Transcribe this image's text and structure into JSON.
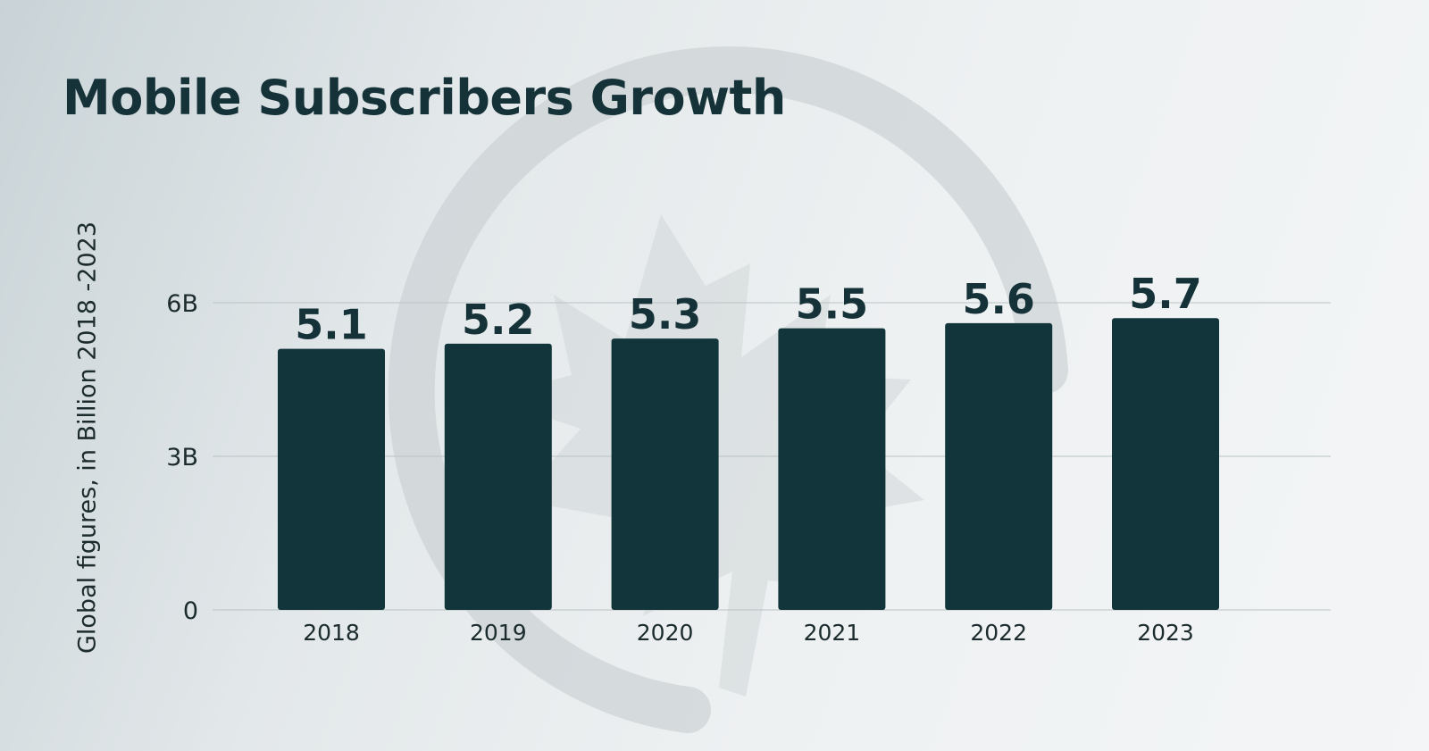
{
  "title": "Mobile Subscribers Growth",
  "chart_data": {
    "type": "bar",
    "title": "Mobile Subscribers Growth",
    "xlabel": "",
    "ylabel": "Global figures, in Billion 2018 -2023",
    "categories": [
      "2018",
      "2019",
      "2020",
      "2021",
      "2022",
      "2023"
    ],
    "values": [
      5.1,
      5.2,
      5.3,
      5.5,
      5.6,
      5.7
    ],
    "value_labels": [
      "5.1",
      "5.2",
      "5.3",
      "5.5",
      "5.6",
      "5.7"
    ],
    "ylim": [
      0,
      6
    ],
    "yticks": [
      0,
      3,
      6
    ],
    "ytick_labels": [
      "0",
      "3B",
      "6B"
    ],
    "grid": true,
    "legend": "none"
  },
  "colors": {
    "bar": "#11353a",
    "text": "#143238",
    "grid": "#b9c3c6",
    "watermark": "#c8cfd1"
  },
  "watermark_icon": "maple-leaf-circle-logo"
}
